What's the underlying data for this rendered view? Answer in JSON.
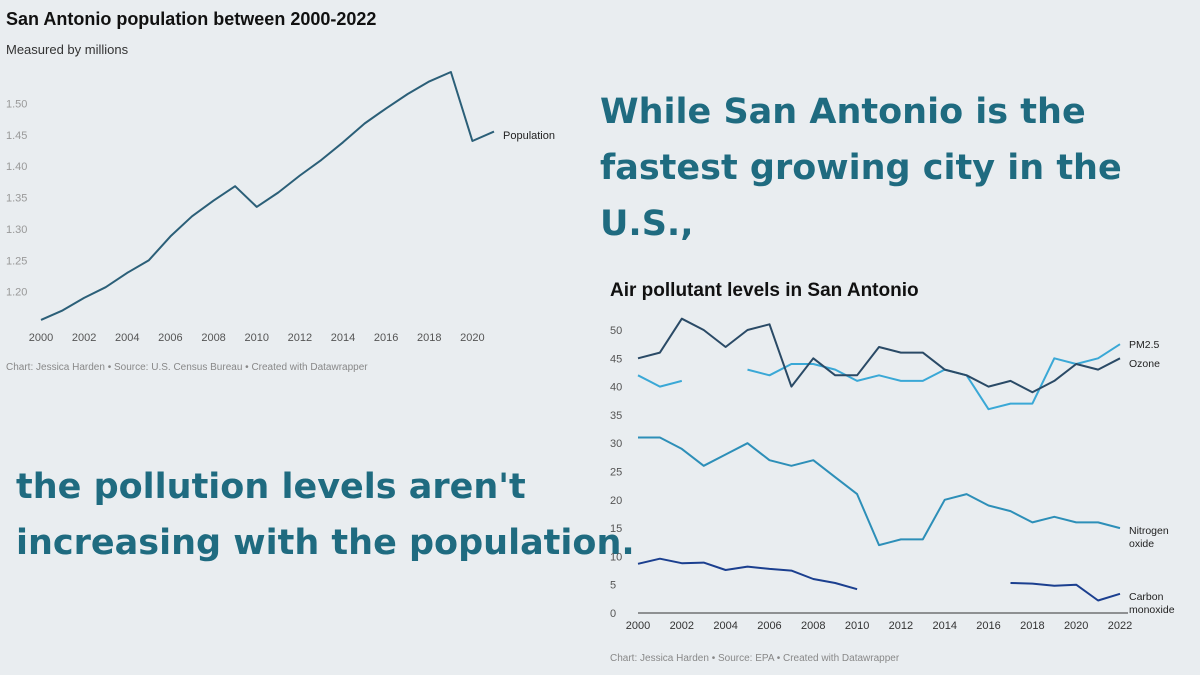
{
  "pop_chart": {
    "title": "San Antonio population between 2000-2022",
    "subtitle": "Measured by millions",
    "source": "Chart: Jessica Harden • Source: U.S. Census Bureau • Created with Datawrapper"
  },
  "headline": {
    "top": [
      "While San Antonio is the",
      "fastest growing city in the U.S.,"
    ],
    "bottom": [
      "the pollution levels aren't",
      "increasing with the population."
    ],
    "color": "#1f6b80"
  },
  "pollution_chart": {
    "title": "Air pollutant levels in San Antonio",
    "source": "Chart: Jessica Harden • Source: EPA • Created with Datawrapper"
  },
  "chart_data": [
    {
      "type": "line",
      "title": "San Antonio population between 2000-2022",
      "subtitle": "Measured by millions",
      "xlabel": "",
      "ylabel": "",
      "xlim": [
        2000,
        2021
      ],
      "ylim": [
        1.15,
        1.55
      ],
      "x_ticks": [
        "2000",
        "2002",
        "2004",
        "2006",
        "2008",
        "2010",
        "2012",
        "2014",
        "2016",
        "2018",
        "2020"
      ],
      "y_ticks": [
        "1.20",
        "1.25",
        "1.30",
        "1.35",
        "1.40",
        "1.45",
        "1.50"
      ],
      "grid": false,
      "x": [
        2000,
        2001,
        2002,
        2003,
        2004,
        2005,
        2006,
        2007,
        2008,
        2009,
        2010,
        2011,
        2012,
        2013,
        2014,
        2015,
        2016,
        2017,
        2018,
        2019,
        2020,
        2021
      ],
      "series": [
        {
          "name": "Population",
          "color": "#2b5f78",
          "values": [
            1.155,
            1.17,
            1.19,
            1.207,
            1.23,
            1.25,
            1.288,
            1.32,
            1.345,
            1.368,
            1.335,
            1.358,
            1.385,
            1.41,
            1.438,
            1.468,
            1.492,
            1.515,
            1.535,
            1.55,
            1.44,
            1.455
          ]
        }
      ]
    },
    {
      "type": "line",
      "title": "Air pollutant levels in San Antonio",
      "xlabel": "",
      "ylabel": "",
      "xlim": [
        2000,
        2022
      ],
      "ylim": [
        0,
        50
      ],
      "x_ticks": [
        "2000",
        "2002",
        "2004",
        "2006",
        "2008",
        "2010",
        "2012",
        "2014",
        "2016",
        "2018",
        "2020",
        "2022"
      ],
      "y_ticks": [
        "0",
        "5",
        "10",
        "15",
        "20",
        "25",
        "30",
        "35",
        "40",
        "45",
        "50"
      ],
      "grid": false,
      "x": [
        2000,
        2001,
        2002,
        2003,
        2004,
        2005,
        2006,
        2007,
        2008,
        2009,
        2010,
        2011,
        2012,
        2013,
        2014,
        2015,
        2016,
        2017,
        2018,
        2019,
        2020,
        2021,
        2022
      ],
      "series": [
        {
          "name": "PM2.5",
          "color": "#3aa8d6",
          "values": [
            42,
            40,
            41,
            null,
            null,
            43,
            42,
            44,
            44,
            43,
            41,
            42,
            41,
            41,
            43,
            42,
            36,
            37,
            37,
            45,
            44,
            45,
            47.5
          ]
        },
        {
          "name": "Ozone",
          "color": "#2a4a66",
          "values": [
            45,
            46,
            52,
            50,
            47,
            50,
            51,
            40,
            45,
            42,
            42,
            47,
            46,
            46,
            43,
            42,
            40,
            41,
            39,
            41,
            44,
            43,
            45
          ]
        },
        {
          "name": "Nitrogen oxide",
          "color": "#2d8fb8",
          "values": [
            31,
            31,
            29,
            26,
            28,
            30,
            27,
            26,
            27,
            24,
            21,
            12,
            13,
            13,
            20,
            21,
            19,
            18,
            16,
            17,
            16,
            16,
            15
          ]
        },
        {
          "name": "Carbon monoxide",
          "color": "#1b3f8f",
          "values": [
            8.7,
            9.6,
            8.8,
            8.9,
            7.6,
            8.2,
            7.8,
            7.5,
            6,
            5.3,
            4.2,
            null,
            null,
            null,
            null,
            null,
            null,
            5.3,
            5.2,
            4.8,
            5,
            2.2,
            3.4
          ]
        }
      ]
    }
  ]
}
